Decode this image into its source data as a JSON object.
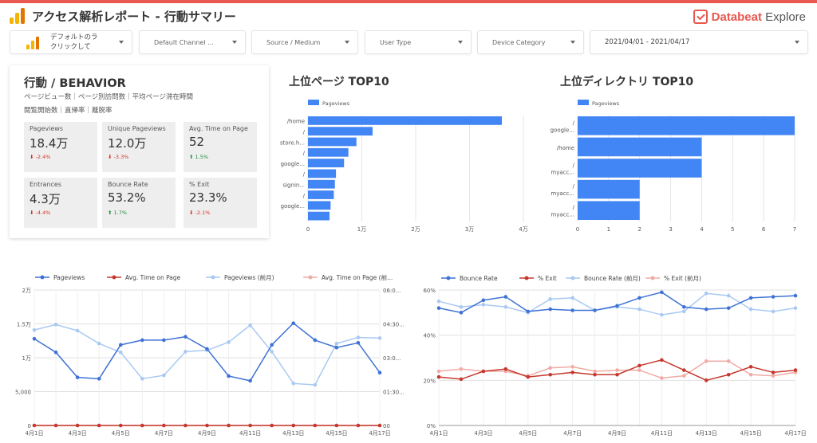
{
  "header": {
    "title": "アクセス解析レポート - 行動サマリー",
    "brand_main": "Databeat",
    "brand_sub": " Explore",
    "logo_colors": [
      "#f4b400",
      "#f4b400",
      "#e37400"
    ]
  },
  "filters": {
    "first_line1": "デフォルトのラ",
    "first_line2": "クリックして",
    "channel": "Default Channel ...",
    "source": "Source / Medium",
    "user_type": "User Type",
    "device": "Device Category",
    "date_range": "2021/04/01 - 2021/04/17"
  },
  "behavior": {
    "title": "行動 / BEHAVIOR",
    "sub1": "ページビュー数｜ページ別訪問数｜平均ページ滞在時間",
    "sub2": "閲覧開始数｜直帰率｜離脱率",
    "kpis": [
      {
        "label": "Pageviews",
        "value": "18.4万",
        "change": "-2.4%",
        "dir": "down"
      },
      {
        "label": "Unique Pageviews",
        "value": "12.0万",
        "change": "-3.3%",
        "dir": "down"
      },
      {
        "label": "Avg. Time on Page",
        "value": "52",
        "change": "1.5%",
        "dir": "up"
      },
      {
        "label": "Entrances",
        "value": "4.3万",
        "change": "-4.4%",
        "dir": "down"
      },
      {
        "label": "Bounce Rate",
        "value": "53.2%",
        "change": "1.7%",
        "dir": "up"
      },
      {
        "label": "% Exit",
        "value": "23.3%",
        "change": "-2.1%",
        "dir": "down"
      }
    ]
  },
  "chart_data": [
    {
      "type": "bar",
      "title": "上位ページ TOP10",
      "legend": "Pageviews",
      "categories": [
        "/home",
        "/",
        "store.h...",
        "/",
        "google...",
        "/",
        "signin...",
        "/",
        "google...",
        "/"
      ],
      "tick_labels_shown": [
        "/home",
        "/",
        "store.h...",
        "/",
        "google...",
        "/",
        "signin...",
        "/",
        "google..."
      ],
      "values": [
        36000,
        12000,
        9000,
        7500,
        6700,
        5200,
        5000,
        4800,
        4200,
        4000
      ],
      "xticks": [
        "0",
        "1万",
        "2万",
        "3万",
        "4万"
      ],
      "xlim": [
        0,
        40000
      ],
      "color": "#4285f4"
    },
    {
      "type": "bar",
      "title": "上位ディレクトリ TOP10",
      "legend": "Pageviews",
      "categories": [
        "/ google...",
        "/home",
        "/ myacc...",
        "/ myacc...",
        "/ myacc..."
      ],
      "labels_line1": [
        "/",
        "/home",
        "/",
        "/",
        "/"
      ],
      "labels_line2": [
        "google...",
        "",
        "myacc...",
        "myacc...",
        "myacc..."
      ],
      "values": [
        7,
        4,
        4,
        2,
        2
      ],
      "xticks": [
        "0",
        "1",
        "2",
        "3",
        "4",
        "5",
        "6",
        "7"
      ],
      "xlim": [
        0,
        7
      ],
      "color": "#4285f4"
    },
    {
      "type": "line",
      "series": [
        {
          "name": "Pageviews",
          "color": "#3f72d6",
          "axis": "left",
          "values": [
            12800,
            10800,
            7100,
            6900,
            11900,
            12600,
            12600,
            13100,
            11300,
            7300,
            6600,
            11900,
            15100,
            12600,
            11500,
            12200,
            7800
          ]
        },
        {
          "name": "Avg. Time on Page",
          "color": "#c5392f",
          "axis": "right",
          "values": [
            0,
            0,
            0,
            0,
            0,
            0,
            0,
            0,
            0,
            0,
            0,
            0,
            0,
            0,
            0,
            0,
            0
          ]
        },
        {
          "name": "Pageviews (前月)",
          "color": "#a9c9f2",
          "axis": "left",
          "values": [
            14100,
            14900,
            14000,
            12100,
            10800,
            6900,
            7400,
            10900,
            11100,
            12300,
            14800,
            10900,
            6200,
            6000,
            12100,
            13000,
            12900
          ]
        },
        {
          "name": "Avg. Time on Page (前...",
          "color": "#f0aba5",
          "axis": "right",
          "values": [
            0,
            0,
            0,
            0,
            0,
            0,
            0,
            0,
            0,
            0,
            0,
            0,
            0,
            0,
            0,
            0,
            0
          ]
        }
      ],
      "x": [
        "4月1日",
        "4月2日",
        "4月3日",
        "4月4日",
        "4月5日",
        "4月6日",
        "4月7日",
        "4月8日",
        "4月9日",
        "4月10日",
        "4月11日",
        "4月12日",
        "4月13日",
        "4月14日",
        "4月15日",
        "4月16日",
        "4月17日"
      ],
      "xtick_labels": [
        "4月1日",
        "",
        "4月3日",
        "",
        "4月5日",
        "",
        "4月7日",
        "",
        "4月9日",
        "",
        "4月11日",
        "",
        "4月13日",
        "",
        "4月15日",
        "",
        "4月17日"
      ],
      "ylim": [
        0,
        20000
      ],
      "yticks_left": [
        "0",
        "5,000",
        "1万",
        "1.5万",
        "2万"
      ],
      "yticks_right": [
        "00",
        "01:30...",
        "03:0...",
        "04:30...",
        "06:0..."
      ]
    },
    {
      "type": "line",
      "series": [
        {
          "name": "Bounce Rate",
          "color": "#3f72d6",
          "values": [
            52,
            50,
            55.5,
            57,
            50.5,
            51.5,
            51,
            51,
            53,
            56.5,
            59,
            52.5,
            51.5,
            52,
            56.5,
            57,
            57.5
          ]
        },
        {
          "name": "% Exit",
          "color": "#c5392f",
          "values": [
            21.5,
            20.5,
            24,
            25,
            21.5,
            22.5,
            23.5,
            22.5,
            22.5,
            26.5,
            29,
            24.5,
            20,
            22.5,
            26,
            23.5,
            24.5
          ]
        },
        {
          "name": "Bounce Rate (前月)",
          "color": "#a9c9f2",
          "values": [
            55,
            52.5,
            53.5,
            52.5,
            50,
            56,
            56.5,
            51,
            52.5,
            51.5,
            49,
            50.5,
            58.5,
            57.5,
            51.5,
            50.5,
            52
          ]
        },
        {
          "name": "% Exit (前月)",
          "color": "#f0aba5",
          "values": [
            24,
            25,
            24,
            24,
            22,
            25.5,
            26,
            24,
            24.5,
            24.5,
            21,
            22,
            28.5,
            28.5,
            22.5,
            22,
            23.5
          ]
        }
      ],
      "x": [
        "4月1日",
        "4月2日",
        "4月3日",
        "4月4日",
        "4月5日",
        "4月6日",
        "4月7日",
        "4月8日",
        "4月9日",
        "4月10日",
        "4月11日",
        "4月12日",
        "4月13日",
        "4月14日",
        "4月15日",
        "4月16日",
        "4月17日"
      ],
      "xtick_labels": [
        "4月1日",
        "",
        "4月3日",
        "",
        "4月5日",
        "",
        "4月7日",
        "",
        "4月9日",
        "",
        "4月11日",
        "",
        "4月13日",
        "",
        "4月15日",
        "",
        "4月17日"
      ],
      "ylim": [
        0,
        60
      ],
      "yticks": [
        "0%",
        "20%",
        "40%",
        "60%"
      ]
    }
  ]
}
